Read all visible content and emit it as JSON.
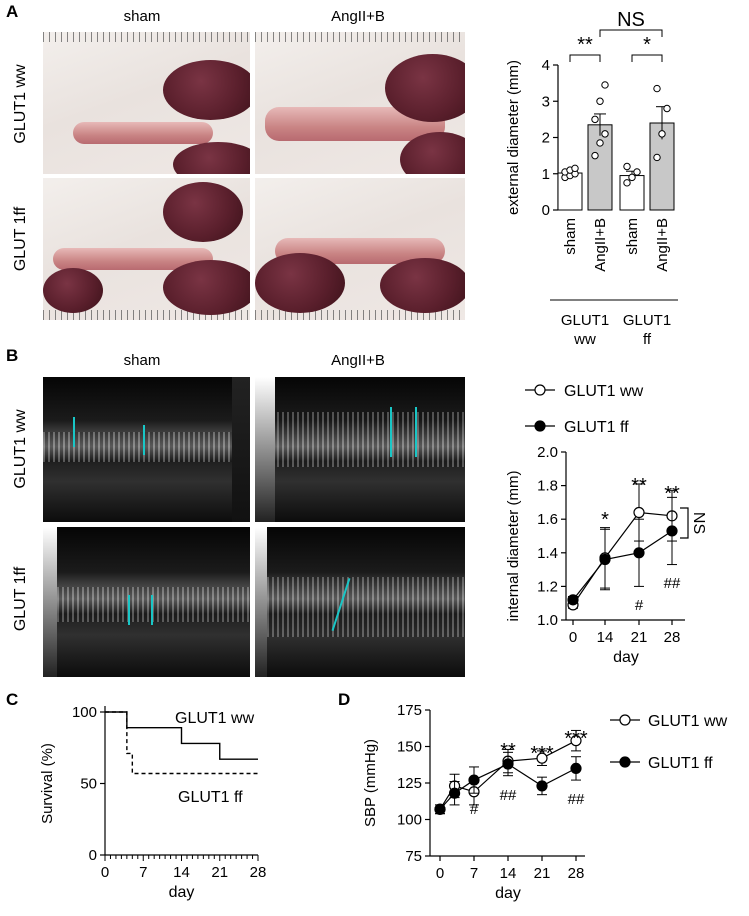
{
  "panelA": {
    "label": "A",
    "col_labels": [
      "sham",
      "AngII+B"
    ],
    "row_labels": [
      "GLUT1 ww",
      "GLUT 1ff"
    ],
    "chart_data": {
      "type": "bar",
      "ylabel": "external diameter (mm)",
      "ylim": [
        0,
        4
      ],
      "yticks": [
        "0",
        "1",
        "2",
        "3",
        "4"
      ],
      "categories": [
        "sham",
        "AngII+B",
        "sham",
        "AngII+B"
      ],
      "groups": [
        "GLUT1\nww",
        "GLUT1\nff"
      ],
      "group_line1": [
        "GLUT1",
        "GLUT1"
      ],
      "group_line2": [
        "ww",
        "ff"
      ],
      "values": [
        1.02,
        2.35,
        0.95,
        2.4
      ],
      "errors": [
        0.08,
        0.3,
        0.12,
        0.45
      ],
      "points": [
        [
          0.9,
          0.95,
          1.0,
          1.05,
          1.1,
          1.15
        ],
        [
          1.5,
          1.85,
          2.1,
          2.5,
          3.0,
          3.45
        ],
        [
          0.75,
          0.9,
          1.05,
          1.2
        ],
        [
          1.45,
          2.1,
          2.8,
          3.35
        ]
      ],
      "bar_colors": [
        "#ffffff",
        "#c8c8c8",
        "#ffffff",
        "#c8c8c8"
      ],
      "annotations": [
        "**",
        "*",
        "NS"
      ]
    }
  },
  "panelB": {
    "label": "B",
    "col_labels": [
      "sham",
      "AngII+B"
    ],
    "row_labels": [
      "GLUT1 ww",
      "GLUT 1ff"
    ],
    "chart_data": {
      "type": "line",
      "xlabel": "day",
      "ylabel": "internal diameter (mm)",
      "x": [
        0,
        14,
        21,
        28
      ],
      "xticks": [
        "0",
        "14",
        "21",
        "28"
      ],
      "ylim": [
        1.0,
        2.0
      ],
      "yticks": [
        "1.0",
        "1.2",
        "1.4",
        "1.6",
        "1.8",
        "2.0"
      ],
      "series": [
        {
          "name": "GLUT1 ww",
          "values": [
            1.09,
            1.37,
            1.64,
            1.62
          ],
          "errors": [
            0.02,
            0.18,
            0.17,
            0.15
          ],
          "marker": "open"
        },
        {
          "name": "GLUT1 ff",
          "values": [
            1.12,
            1.36,
            1.4,
            1.53
          ],
          "errors": [
            0.02,
            0.18,
            0.2,
            0.2
          ],
          "marker": "filled"
        }
      ],
      "annotations_top": [
        "",
        "*",
        "**",
        "**"
      ],
      "annotations_bottom": [
        "",
        "",
        "#",
        "##"
      ],
      "side_annotation": "NS"
    }
  },
  "panelC": {
    "label": "C",
    "chart_data": {
      "type": "line",
      "xlabel": "day",
      "ylabel": "Survival (%)",
      "xticks": [
        "0",
        "7",
        "14",
        "21",
        "28"
      ],
      "xlim": [
        0,
        28
      ],
      "ylim": [
        0,
        100
      ],
      "yticks": [
        "0",
        "50",
        "100"
      ],
      "series": [
        {
          "name": "GLUT1 ww",
          "steps": [
            [
              0,
              100
            ],
            [
              4,
              100
            ],
            [
              4,
              89
            ],
            [
              14,
              89
            ],
            [
              14,
              78
            ],
            [
              21,
              78
            ],
            [
              21,
              67
            ],
            [
              28,
              67
            ]
          ],
          "style": "solid"
        },
        {
          "name": "GLUT1 ff",
          "steps": [
            [
              0,
              100
            ],
            [
              4,
              100
            ],
            [
              4,
              71
            ],
            [
              5,
              71
            ],
            [
              5,
              57
            ],
            [
              28,
              57
            ]
          ],
          "style": "dashed"
        }
      ]
    }
  },
  "panelD": {
    "label": "D",
    "chart_data": {
      "type": "line",
      "xlabel": "day",
      "ylabel": "SBP (mmHg)",
      "x": [
        0,
        3,
        7,
        14,
        21,
        28
      ],
      "xticks": [
        "0",
        "7",
        "14",
        "21",
        "28"
      ],
      "ylim": [
        75,
        175
      ],
      "yticks": [
        "75",
        "100",
        "125",
        "150",
        "175"
      ],
      "series": [
        {
          "name": "GLUT1 ww",
          "values": [
            107,
            123,
            119,
            140,
            142,
            154
          ],
          "errors": [
            3,
            8,
            9,
            8,
            5,
            7
          ],
          "marker": "open"
        },
        {
          "name": "GLUT1 ff",
          "values": [
            107,
            118,
            127,
            138,
            123,
            135
          ],
          "errors": [
            3,
            8,
            9,
            8,
            6,
            8
          ],
          "marker": "filled"
        }
      ],
      "annotations_top": [
        "",
        "",
        "",
        "**",
        "***",
        "***"
      ],
      "annotations_bottom": [
        "",
        "",
        "#",
        "##",
        "",
        "##"
      ]
    }
  }
}
